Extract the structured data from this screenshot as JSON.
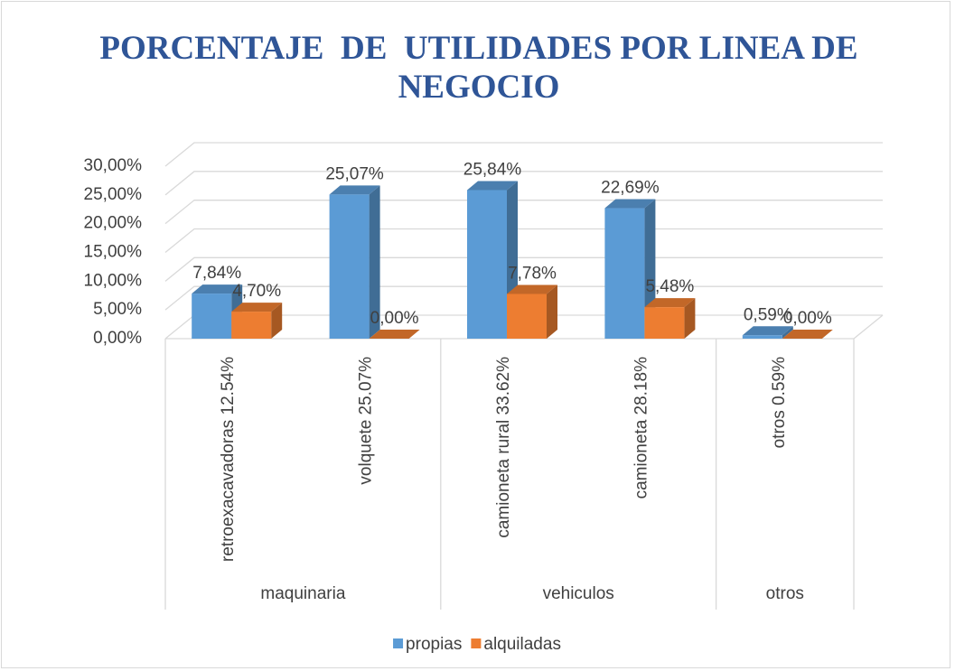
{
  "chart_data": {
    "type": "bar3d",
    "title": "PORCENTAJE  DE  UTILIDADES POR LINEA DE NEGOCIO",
    "groups": [
      {
        "name": "maquinaria",
        "categories": [
          "retroexacavadoras 12.54%",
          "volquete 25.07%"
        ]
      },
      {
        "name": "vehiculos",
        "categories": [
          "camioneta rural 33.62%",
          "camioneta 28.18%"
        ]
      },
      {
        "name": "otros",
        "categories": [
          "otros 0.59%"
        ]
      }
    ],
    "series": [
      {
        "name": "propias",
        "color": "#5b9bd5",
        "values": [
          7.84,
          25.07,
          25.84,
          22.69,
          0.59
        ],
        "value_labels": [
          "7,84%",
          "25,07%",
          "25,84%",
          "22,69%",
          "0,59%"
        ]
      },
      {
        "name": "alquiladas",
        "color": "#ed7d31",
        "values": [
          4.7,
          0,
          7.78,
          5.48,
          0
        ],
        "value_labels": [
          "4,70%",
          "0,00%",
          "7,78%",
          "5,48%",
          "0,00%"
        ]
      }
    ],
    "ylim": [
      0,
      30
    ],
    "yticks": [
      {
        "value": 0,
        "label": "0,00%"
      },
      {
        "value": 5,
        "label": "5,00%"
      },
      {
        "value": 10,
        "label": "10,00%"
      },
      {
        "value": 15,
        "label": "15,00%"
      },
      {
        "value": 20,
        "label": "20,00%"
      },
      {
        "value": 25,
        "label": "25,00%"
      },
      {
        "value": 30,
        "label": "30,00%"
      }
    ],
    "grid": true,
    "legend": "bottom"
  }
}
